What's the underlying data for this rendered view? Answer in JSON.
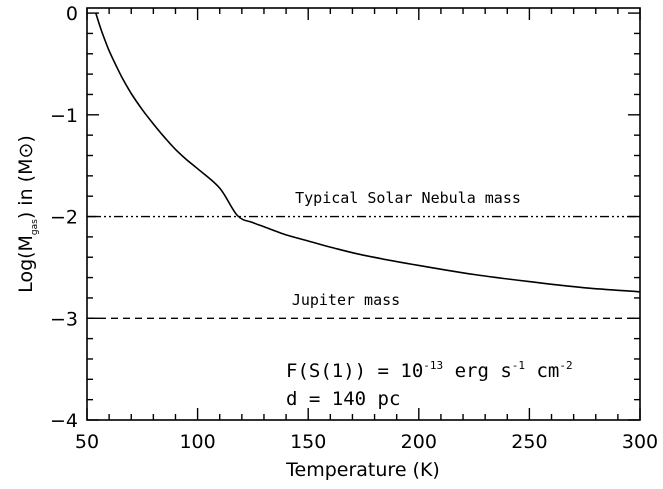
{
  "chart_data": {
    "type": "line",
    "xlabel": "Temperature (K)",
    "ylabel": {
      "prefix": "Log(M",
      "subscript": "gas",
      "suffix": ") in (M",
      "symbol": "⊙",
      "close": ")"
    },
    "xlim": [
      50,
      300
    ],
    "ylim": [
      -4,
      0.05
    ],
    "x_ticks": [
      50,
      100,
      150,
      200,
      250,
      300
    ],
    "y_ticks": [
      0,
      -1,
      -2,
      -3,
      -4
    ],
    "x_tick_labels": [
      "50",
      "100",
      "150",
      "200",
      "250",
      "300"
    ],
    "y_tick_labels": [
      "0",
      "−1",
      "−2",
      "−3",
      "−4"
    ],
    "series": [
      {
        "style": "solid",
        "x": [
          54,
          56,
          58,
          60,
          63,
          66,
          70,
          75,
          80,
          85,
          90,
          95,
          100,
          110,
          118,
          125,
          130,
          140,
          150,
          160,
          175,
          200,
          225,
          250,
          275,
          300
        ],
        "y": [
          0.0,
          -0.14,
          -0.26,
          -0.37,
          -0.51,
          -0.64,
          -0.79,
          -0.95,
          -1.09,
          -1.22,
          -1.34,
          -1.44,
          -1.53,
          -1.72,
          -1.99,
          -2.06,
          -2.1,
          -2.18,
          -2.24,
          -2.3,
          -2.38,
          -2.48,
          -2.57,
          -2.64,
          -2.7,
          -2.74
        ]
      }
    ],
    "hlines": [
      {
        "y": -2,
        "style": "dash-dot-dot",
        "label": "Typical Solar Nebula mass"
      },
      {
        "y": -3,
        "style": "dashed",
        "label": "Jupiter mass"
      }
    ],
    "annotation": {
      "flux_prefix": "F(S(1)) = 10",
      "flux_exp": "-13",
      "flux_unit1": " erg s",
      "flux_exp2": "-1",
      "flux_unit2": " cm",
      "flux_exp3": "-2",
      "distance": "d = 140 pc"
    }
  }
}
